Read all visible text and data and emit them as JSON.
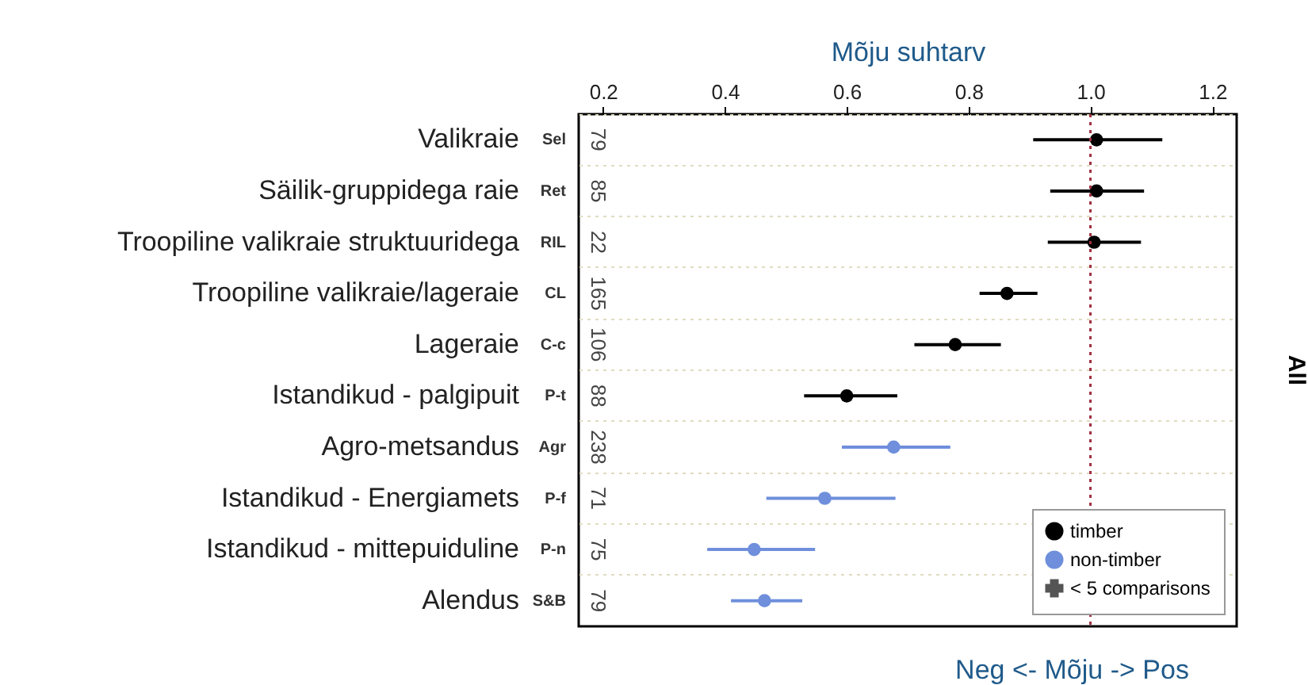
{
  "chart_data": {
    "type": "scatter",
    "orientation": "horizontal",
    "xlabel": "Mõju suhtarv",
    "categories": [
      "Valikraie",
      "Säilik-gruppidega raie",
      "Troopiline valikraie struktuuridega",
      "Troopiline valikraie/lageraie",
      "Lageraie",
      "Istandikud - palgipuit",
      "Agro-metsandus",
      "Istandikud - Energiamets",
      "Istandikud - mittepuiduline",
      "Alendus"
    ],
    "series": [
      {
        "name": "timber",
        "color": "#000000",
        "values": [
          1.01,
          1.01,
          1.006,
          0.863,
          0.778,
          0.6,
          null,
          null,
          null,
          null
        ],
        "errors": [
          [
            0.906,
            1.118
          ],
          [
            0.934,
            1.088
          ],
          [
            0.93,
            1.083
          ],
          [
            0.818,
            0.913
          ],
          [
            0.711,
            0.853
          ],
          [
            0.53,
            0.683
          ],
          null,
          null,
          null,
          null
        ]
      },
      {
        "name": "non-timber",
        "color": "#6f8fdc",
        "values": [
          null,
          null,
          null,
          null,
          null,
          null,
          0.677,
          0.564,
          0.448,
          0.465
        ],
        "errors": [
          null,
          null,
          null,
          null,
          null,
          null,
          [
            0.592,
            0.77
          ],
          [
            0.468,
            0.68
          ],
          [
            0.371,
            0.548
          ],
          [
            0.41,
            0.527
          ]
        ]
      },
      {
        "name": "< 5 comparisons",
        "color": "#555555",
        "marker": "cross",
        "values": [
          null,
          null,
          null,
          null,
          null,
          null,
          null,
          null,
          null,
          null
        ]
      }
    ],
    "xlim": [
      0.16,
      1.24
    ],
    "xticks": [
      0.2,
      0.4,
      0.6,
      0.8,
      {
        "value": 1,
        "label": "1.0"
      },
      1.2
    ],
    "ref_lines": [
      {
        "axis": "x",
        "value": 1,
        "color": "#a03040",
        "line_style": "dotted"
      }
    ],
    "grid": "y",
    "legend": "bottom right",
    "marker": "circle",
    "annotations": [
      "Sel",
      "Ret",
      "RIL",
      "CL",
      "C-c",
      "P-t",
      "Agr",
      "P-f",
      "P-n",
      "S&B",
      "79",
      "85",
      "22",
      "165",
      "106",
      "88",
      "238",
      "71",
      "75",
      "79",
      "All",
      "Neg  <-  Mõju  ->  Pos"
    ]
  }
}
